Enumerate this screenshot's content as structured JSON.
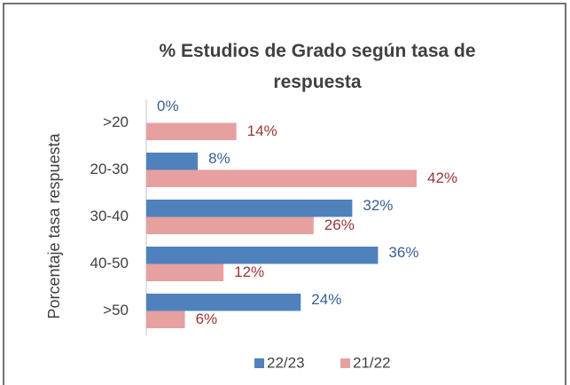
{
  "chart_data": {
    "type": "hbar",
    "title": "% Estudios de Grado según tasa de respuesta",
    "ylabel": "Porcentaje tasa respuesta",
    "categories": [
      ">20",
      "20-30",
      "30-40",
      "40-50",
      ">50"
    ],
    "series": [
      {
        "name": "22/23",
        "color": "#4f81bd",
        "label_color": "#376092",
        "values": [
          0,
          8,
          32,
          36,
          24
        ],
        "value_labels": [
          "0%",
          "8%",
          "32%",
          "36%",
          "24%"
        ]
      },
      {
        "name": "21/22",
        "color": "#e6a0a0",
        "label_color": "#953735",
        "values": [
          14,
          42,
          26,
          12,
          6
        ],
        "value_labels": [
          "14%",
          "42%",
          "26%",
          "12%",
          "6%"
        ]
      }
    ],
    "legend": "bottom"
  }
}
